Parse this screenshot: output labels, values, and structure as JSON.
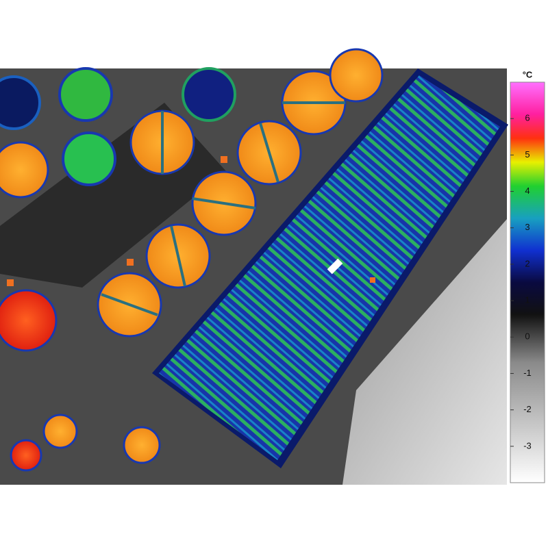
{
  "colorbar": {
    "unit": "°C",
    "range": [
      -4,
      7
    ],
    "ticks": [
      6,
      5,
      4,
      3,
      2,
      1,
      0,
      -1,
      -2,
      -3
    ]
  }
}
